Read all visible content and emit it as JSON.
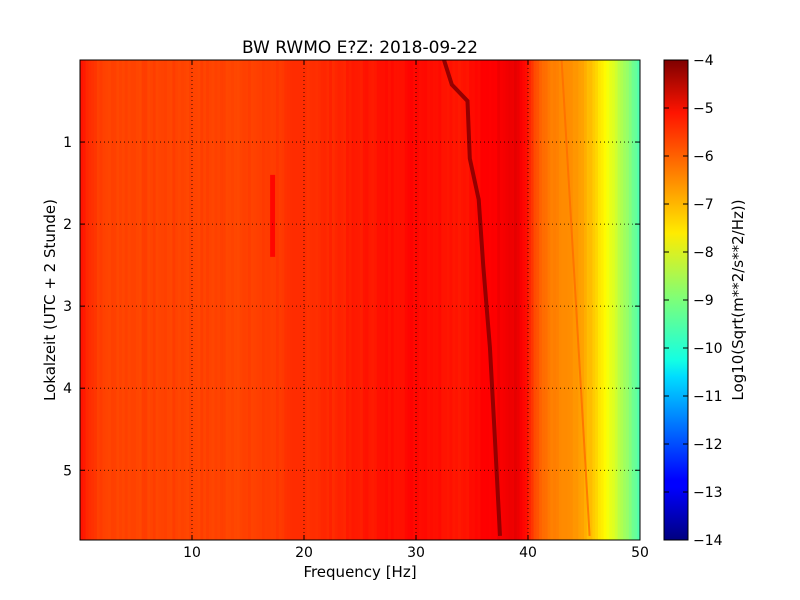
{
  "chart_data": {
    "type": "heatmap",
    "title": "BW RWMO E?Z: 2018-09-22",
    "xlabel": "Frequency [Hz]",
    "ylabel": "Lokalzeit (UTC + 2 Stunde)",
    "xlim": [
      0,
      50
    ],
    "ylim": [
      5.85,
      0
    ],
    "x_ticks": [
      10,
      20,
      30,
      40,
      50
    ],
    "x_tick_labels": [
      "10",
      "20",
      "30",
      "40",
      "50"
    ],
    "y_ticks": [
      1,
      2,
      3,
      4,
      5
    ],
    "y_tick_labels": [
      "1",
      "2",
      "3",
      "4",
      "5"
    ],
    "grid": true,
    "colorbar": {
      "label": "Log10(Sqrt(m**2/s**2/Hz))",
      "range": [
        -14,
        -4
      ],
      "ticks": [
        -4,
        -5,
        -6,
        -7,
        -8,
        -9,
        -10,
        -11,
        -12,
        -13,
        -14
      ],
      "tick_labels": [
        "−4",
        "−5",
        "−6",
        "−7",
        "−8",
        "−9",
        "−10",
        "−11",
        "−12",
        "−13",
        "−14"
      ],
      "colormap": "jet"
    },
    "frequency_profile": {
      "frequencies": [
        0,
        1,
        2,
        5,
        10,
        15,
        20,
        22,
        25,
        30,
        34,
        37,
        39,
        40,
        41,
        42,
        43,
        44,
        45,
        46,
        47,
        48,
        49,
        50
      ],
      "levels": [
        -5.4,
        -5.7,
        -5.9,
        -5.9,
        -5.9,
        -5.9,
        -5.7,
        -5.65,
        -5.5,
        -5.3,
        -5.45,
        -5.2,
        -5.0,
        -5.5,
        -6.2,
        -6.5,
        -6.6,
        -6.7,
        -6.9,
        -7.3,
        -7.8,
        -8.3,
        -8.9,
        -9.5
      ]
    },
    "tremor_line": {
      "time": [
        0.0,
        0.3,
        0.5,
        1.2,
        1.7,
        2.5,
        3.5,
        4.5,
        5.8
      ],
      "frequency": [
        32.5,
        33.2,
        34.6,
        34.8,
        35.6,
        36.0,
        36.6,
        37.0,
        37.5
      ],
      "level": -4.2
    },
    "secondary_line": {
      "time": [
        0.0,
        5.8
      ],
      "frequency": [
        43.0,
        45.5
      ],
      "level": -6.3
    },
    "band_17hz": {
      "frequency": 17.2,
      "time_range": [
        1.4,
        2.4
      ],
      "level": -5.3
    }
  }
}
